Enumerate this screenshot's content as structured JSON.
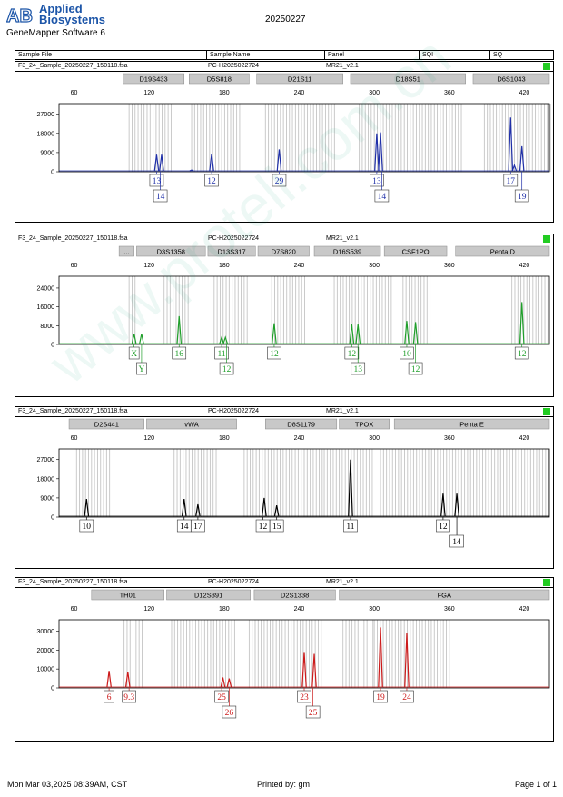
{
  "header": {
    "brand_line1": "Applied",
    "brand_line2": "Biosystems",
    "software": "GeneMapper Software 6",
    "run_date": "20250227"
  },
  "columns": {
    "sample_file": "Sample File",
    "sample_name": "Sample Name",
    "panel": "Panel",
    "sqi": "SQI",
    "sq": "SQ"
  },
  "footer": {
    "date": "Mon Mar 03,2025 08:39AM, CST",
    "printed_by": "Printed by: gm",
    "page": "Page 1 of 1"
  },
  "watermark": "www.proteli.com.cn",
  "status_color": "#22cc22",
  "chart_data": [
    {
      "type": "line",
      "file": "F3_24_Sample_20250227_150118.fsa",
      "sample_name": "PC-H2025022724",
      "panel": "MR21_v2.1",
      "color": "#1f2fa8",
      "xlim": [
        48,
        440
      ],
      "ylim": [
        0,
        32000
      ],
      "x_ticks": [
        60,
        120,
        180,
        240,
        300,
        360,
        420
      ],
      "y_ticks": [
        0,
        9000,
        18000,
        27000
      ],
      "y_tick_labels": [
        "0",
        "9000",
        "18000",
        "27000"
      ],
      "markers": [
        {
          "name": "D19S433",
          "x0": 99,
          "x1": 148
        },
        {
          "name": "D5S818",
          "x0": 152,
          "x1": 200
        },
        {
          "name": "D21S11",
          "x0": 206,
          "x1": 275
        },
        {
          "name": "D18S51",
          "x0": 281,
          "x1": 373
        },
        {
          "name": "D6S1043",
          "x0": 379,
          "x1": 455
        }
      ],
      "bins": [
        [
          104,
          140
        ],
        [
          154,
          194
        ],
        [
          213,
          270
        ],
        [
          288,
          370
        ],
        [
          388,
          442
        ]
      ],
      "peaks": [
        {
          "x": 126,
          "h": 8000
        },
        {
          "x": 130,
          "h": 8000
        },
        {
          "x": 154,
          "h": 800
        },
        {
          "x": 170,
          "h": 8500
        },
        {
          "x": 224,
          "h": 10500
        },
        {
          "x": 302,
          "h": 18000
        },
        {
          "x": 305,
          "h": 18500
        },
        {
          "x": 409,
          "h": 25500
        },
        {
          "x": 412,
          "h": 3000
        },
        {
          "x": 418,
          "h": 12000
        }
      ],
      "allele_labels": [
        {
          "x": 126,
          "row": 1,
          "text": "13"
        },
        {
          "x": 129,
          "row": 2,
          "text": "14"
        },
        {
          "x": 170,
          "row": 1,
          "text": "12"
        },
        {
          "x": 224,
          "row": 1,
          "text": "29"
        },
        {
          "x": 302,
          "row": 1,
          "text": "13"
        },
        {
          "x": 306,
          "row": 2,
          "text": "14"
        },
        {
          "x": 409,
          "row": 1,
          "text": "17"
        },
        {
          "x": 418,
          "row": 2,
          "text": "19"
        }
      ]
    },
    {
      "type": "line",
      "file": "F3_24_Sample_20250227_150118.fsa",
      "sample_name": "PC-H2025022724",
      "panel": "MR21_v2.1",
      "color": "#1f9e2a",
      "xlim": [
        48,
        440
      ],
      "ylim": [
        0,
        29000
      ],
      "x_ticks": [
        60,
        120,
        180,
        240,
        300,
        360,
        420
      ],
      "y_ticks": [
        0,
        8000,
        16000,
        24000
      ],
      "y_tick_labels": [
        "0",
        "8000",
        "16000",
        "24000"
      ],
      "markers": [
        {
          "name": "...",
          "x0": 96,
          "x1": 108
        },
        {
          "name": "D3S1358",
          "x0": 110,
          "x1": 165
        },
        {
          "name": "D13S317",
          "x0": 167,
          "x1": 205
        },
        {
          "name": "D7S820",
          "x0": 207,
          "x1": 248
        },
        {
          "name": "D16S539",
          "x0": 252,
          "x1": 305
        },
        {
          "name": "CSF1PO",
          "x0": 308,
          "x1": 358
        },
        {
          "name": "Penta D",
          "x0": 365,
          "x1": 448
        }
      ],
      "bins": [
        [
          104,
          110
        ],
        [
          132,
          152
        ],
        [
          172,
          200
        ],
        [
          218,
          245
        ],
        [
          268,
          315
        ],
        [
          323,
          345
        ],
        [
          410,
          440
        ]
      ],
      "peaks": [
        {
          "x": 108,
          "h": 4500
        },
        {
          "x": 114,
          "h": 4500
        },
        {
          "x": 144,
          "h": 12000
        },
        {
          "x": 178,
          "h": 3000
        },
        {
          "x": 181,
          "h": 3000
        },
        {
          "x": 220,
          "h": 9000
        },
        {
          "x": 282,
          "h": 8500
        },
        {
          "x": 287,
          "h": 8500
        },
        {
          "x": 326,
          "h": 10000
        },
        {
          "x": 333,
          "h": 9500
        },
        {
          "x": 418,
          "h": 18000
        }
      ],
      "allele_labels": [
        {
          "x": 108,
          "row": 1,
          "text": "X"
        },
        {
          "x": 114,
          "row": 2,
          "text": "Y"
        },
        {
          "x": 144,
          "row": 1,
          "text": "16"
        },
        {
          "x": 178,
          "row": 1,
          "text": "11"
        },
        {
          "x": 182,
          "row": 2,
          "text": "12"
        },
        {
          "x": 220,
          "row": 1,
          "text": "12"
        },
        {
          "x": 282,
          "row": 1,
          "text": "12"
        },
        {
          "x": 287,
          "row": 2,
          "text": "13"
        },
        {
          "x": 326,
          "row": 1,
          "text": "10"
        },
        {
          "x": 333,
          "row": 2,
          "text": "12"
        },
        {
          "x": 418,
          "row": 1,
          "text": "12"
        }
      ]
    },
    {
      "type": "line",
      "file": "F3_24_Sample_20250227_150118.fsa",
      "sample_name": "PC-H2025022724",
      "panel": "MR21_v2.1",
      "color": "#000000",
      "xlim": [
        48,
        440
      ],
      "ylim": [
        0,
        32000
      ],
      "x_ticks": [
        60,
        120,
        180,
        240,
        300,
        360,
        420
      ],
      "y_ticks": [
        0,
        9000,
        18000,
        27000
      ],
      "y_tick_labels": [
        "0",
        "9000",
        "18000",
        "27000"
      ],
      "markers": [
        {
          "name": "D2S441",
          "x0": 56,
          "x1": 116
        },
        {
          "name": "vWA",
          "x0": 118,
          "x1": 190
        },
        {
          "name": "D8S1179",
          "x0": 213,
          "x1": 270
        },
        {
          "name": "TPOX",
          "x0": 272,
          "x1": 312
        },
        {
          "name": "Penta E",
          "x0": 316,
          "x1": 448
        }
      ],
      "bins": [
        [
          62,
          90
        ],
        [
          140,
          176
        ],
        [
          196,
          260
        ],
        [
          260,
          300
        ],
        [
          305,
          440
        ]
      ],
      "peaks": [
        {
          "x": 70,
          "h": 8500
        },
        {
          "x": 148,
          "h": 8500
        },
        {
          "x": 159,
          "h": 6000
        },
        {
          "x": 212,
          "h": 9000
        },
        {
          "x": 222,
          "h": 5500
        },
        {
          "x": 281,
          "h": 27000
        },
        {
          "x": 355,
          "h": 11000
        },
        {
          "x": 366,
          "h": 11000
        }
      ],
      "allele_labels": [
        {
          "x": 70,
          "row": 1,
          "text": "10"
        },
        {
          "x": 148,
          "row": 1,
          "text": "14"
        },
        {
          "x": 159,
          "row": 1,
          "text": "17"
        },
        {
          "x": 211,
          "row": 1,
          "text": "12"
        },
        {
          "x": 222,
          "row": 1,
          "text": "15"
        },
        {
          "x": 281,
          "row": 1,
          "text": "11"
        },
        {
          "x": 355,
          "row": 1,
          "text": "12"
        },
        {
          "x": 366,
          "row": 2,
          "text": "14"
        }
      ]
    },
    {
      "type": "line",
      "file": "F3_24_Sample_20250227_150118.fsa",
      "sample_name": "PC-H2025022724",
      "panel": "MR21_v2.1",
      "color": "#cc1a1a",
      "xlim": [
        48,
        440
      ],
      "ylim": [
        0,
        36000
      ],
      "x_ticks": [
        60,
        120,
        180,
        240,
        300,
        360,
        420
      ],
      "y_ticks": [
        0,
        10000,
        20000,
        30000
      ],
      "y_tick_labels": [
        "0",
        "10000",
        "20000",
        "30000"
      ],
      "markers": [
        {
          "name": "TH01",
          "x0": 74,
          "x1": 132
        },
        {
          "name": "D12S391",
          "x0": 134,
          "x1": 201
        },
        {
          "name": "D2S1338",
          "x0": 204,
          "x1": 269
        },
        {
          "name": "FGA",
          "x0": 272,
          "x1": 448
        }
      ],
      "bins": [
        [
          100,
          115
        ],
        [
          138,
          190
        ],
        [
          200,
          260
        ],
        [
          275,
          300
        ],
        [
          300,
          360
        ]
      ],
      "peaks": [
        {
          "x": 88,
          "h": 9000
        },
        {
          "x": 103,
          "h": 8500
        },
        {
          "x": 179,
          "h": 5500
        },
        {
          "x": 184,
          "h": 5000
        },
        {
          "x": 244,
          "h": 19000
        },
        {
          "x": 252,
          "h": 18000
        },
        {
          "x": 305,
          "h": 32000
        },
        {
          "x": 326,
          "h": 29000
        }
      ],
      "allele_labels": [
        {
          "x": 88,
          "row": 1,
          "text": "6"
        },
        {
          "x": 104,
          "row": 1,
          "text": "9.3"
        },
        {
          "x": 178,
          "row": 1,
          "text": "25"
        },
        {
          "x": 184,
          "row": 2,
          "text": "26"
        },
        {
          "x": 244,
          "row": 1,
          "text": "23"
        },
        {
          "x": 251,
          "row": 2,
          "text": "25"
        },
        {
          "x": 305,
          "row": 1,
          "text": "19"
        },
        {
          "x": 326,
          "row": 1,
          "text": "24"
        }
      ]
    }
  ]
}
